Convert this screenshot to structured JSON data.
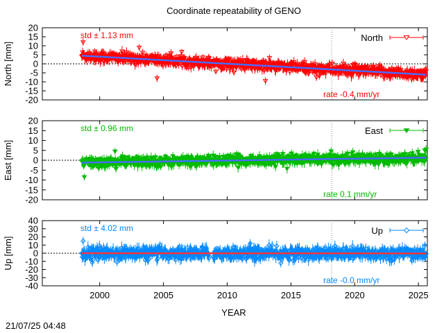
{
  "chart_data": {
    "type": "scatter",
    "title": "Coordinate repeatability of GENO",
    "xlabel": "YEAR",
    "xlim": [
      1995.5,
      2025.7
    ],
    "x_ticks": [
      "2000",
      "2005",
      "2010",
      "2015",
      "2020",
      "2025"
    ],
    "x_tick_values": [
      2000,
      2005,
      2010,
      2015,
      2020,
      2025
    ],
    "marker_year": 2018.2,
    "timestamp": "21/07/25 04:48",
    "data_start": 1998.6,
    "data_end": 2025.6,
    "panels": [
      {
        "key": "north",
        "ylabel": "North [mm]",
        "ylim": [
          -20,
          20
        ],
        "y_ticks": [
          "20",
          "15",
          "10",
          "5",
          "0",
          "-5",
          "-10",
          "-15",
          "-20"
        ],
        "y_tick_values": [
          20,
          15,
          10,
          5,
          0,
          -5,
          -10,
          -15,
          -20
        ],
        "legend": "North",
        "std_text": "std ± 1.13 mm",
        "rate_text": "rate -0.4 mm/yr",
        "color": "#ff0000",
        "trend_color": "#4a6cff",
        "marker": "triangle-down-open",
        "trend": {
          "start": 4.5,
          "end": -6.0
        },
        "scatter": 2.5,
        "outliers": [
          [
            1998.7,
            12
          ],
          [
            2003.1,
            9
          ],
          [
            2004.5,
            -8
          ],
          [
            2013.0,
            -9.5
          ],
          [
            2017.0,
            -7.5
          ]
        ]
      },
      {
        "key": "east",
        "ylabel": "East [mm]",
        "ylim": [
          -20,
          20
        ],
        "y_ticks": [
          "20",
          "15",
          "10",
          "5",
          "0",
          "-5",
          "-10",
          "-15",
          "-20"
        ],
        "y_tick_values": [
          20,
          15,
          10,
          5,
          0,
          -5,
          -10,
          -15,
          -20
        ],
        "legend": "East",
        "std_text": "std ± 0.96 mm",
        "rate_text": "rate  0.1 mm/yr",
        "color": "#00bb00",
        "trend_color": "#4a6cff",
        "marker": "triangle-down-filled",
        "trend": {
          "start": -1.2,
          "end": 1.3
        },
        "scatter": 2.2,
        "outliers": [
          [
            1998.8,
            -8.5
          ],
          [
            2001.2,
            4.5
          ],
          [
            2025.5,
            5
          ]
        ]
      },
      {
        "key": "up",
        "ylabel": "Up [mm]",
        "ylim": [
          -40,
          40
        ],
        "y_ticks": [
          "40",
          "30",
          "20",
          "10",
          "0",
          "-10",
          "-20",
          "-30",
          "-40"
        ],
        "y_tick_values": [
          40,
          30,
          20,
          10,
          0,
          -10,
          -20,
          -30,
          -40
        ],
        "legend": "Up",
        "std_text": "std ± 4.02 mm",
        "rate_text": "rate -0.0 mm/yr",
        "color": "#0088ff",
        "trend_color": "#ff3333",
        "marker": "diamond-open",
        "trend": {
          "start": 0.0,
          "end": -0.3
        },
        "scatter": 6.5,
        "outliers": [
          [
            1998.7,
            15
          ],
          [
            2011.8,
            12
          ],
          [
            2014.2,
            -12
          ]
        ]
      }
    ]
  }
}
